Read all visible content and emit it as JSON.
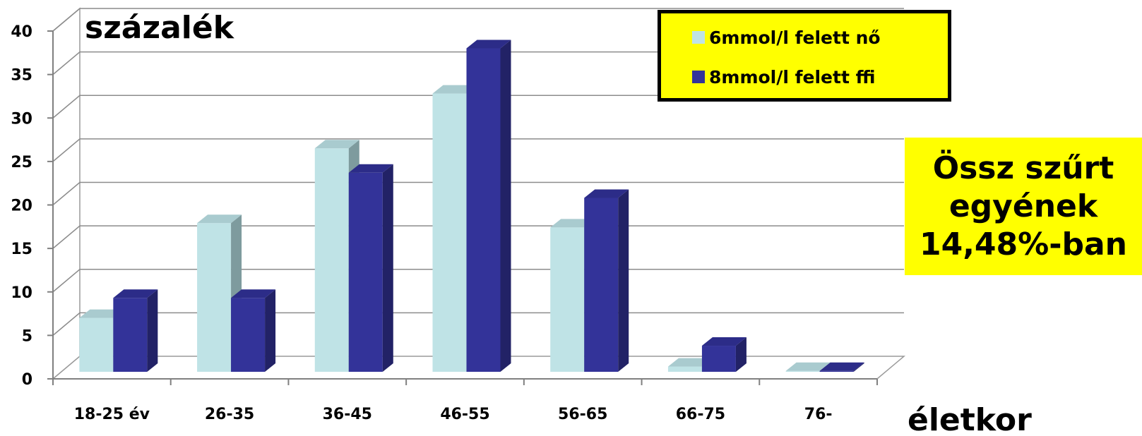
{
  "chart_data": {
    "type": "bar",
    "ylabel": "százalék",
    "xlabel": "életkor",
    "ylim": [
      0,
      40
    ],
    "yticks": [
      0,
      5,
      10,
      15,
      20,
      25,
      30,
      35,
      40
    ],
    "grid": true,
    "categories": [
      "18-25 év",
      "26-35",
      "36-45",
      "46-55",
      "56-65",
      "66-75",
      "76-"
    ],
    "series": [
      {
        "name": "6mmol/l felett nő",
        "color": "#bfe3e6",
        "values": [
          6.2,
          17.1,
          25.7,
          32.0,
          16.6,
          0.6,
          0.1
        ]
      },
      {
        "name": "8mmol/l felett ffi",
        "color": "#333399",
        "values": [
          8.5,
          8.5,
          22.9,
          37.2,
          20.0,
          3.0,
          0.1
        ]
      }
    ],
    "legend_position": "top-right"
  },
  "annotation": {
    "lines": [
      "Össz szűrt",
      "egyének",
      "14,48%-ban"
    ],
    "background": "#ffff00"
  }
}
